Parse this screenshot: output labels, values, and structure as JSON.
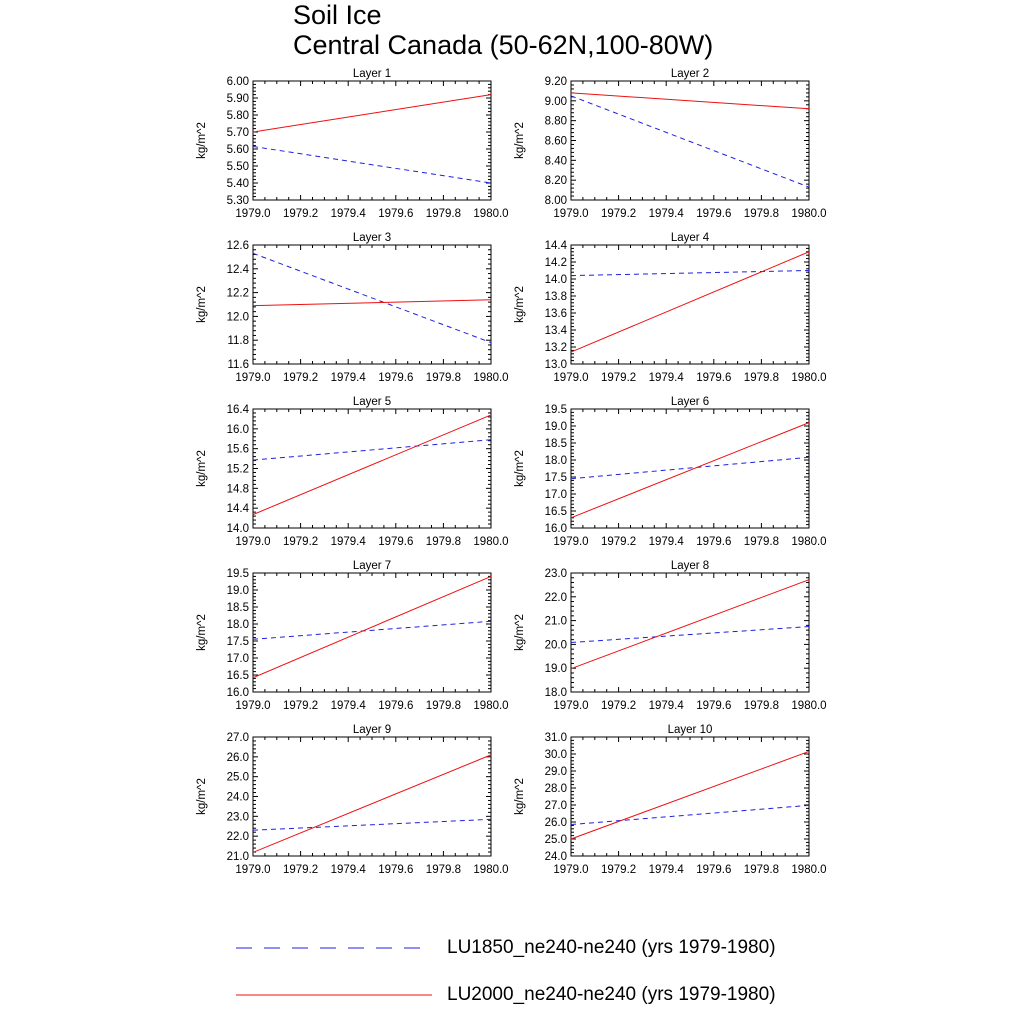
{
  "page": {
    "title_line1": "Soil Ice",
    "title_line2": "Central Canada (50-62N,100-80W)"
  },
  "colors": {
    "LU1850": "#2020e0",
    "LU2000": "#ee1010",
    "axis": "#000000"
  },
  "legend": [
    {
      "label": "LU1850_ne240-ne240 (yrs 1979-1980)",
      "style": "dashed",
      "color": "#2020e0"
    },
    {
      "label": "LU2000_ne240-ne240 (yrs 1979-1980)",
      "style": "solid",
      "color": "#ee1010"
    }
  ],
  "chart_data": [
    {
      "type": "line",
      "title": "Layer 1",
      "ylabel": "kg/m^2",
      "x": [
        1979.0,
        1980.0
      ],
      "xlim": [
        1979.0,
        1980.0
      ],
      "xticks": [
        "1979.0",
        "1979.2",
        "1979.4",
        "1979.6",
        "1979.8",
        "1980.0"
      ],
      "ylim": [
        5.3,
        6.0
      ],
      "yticks": [
        "5.30",
        "5.40",
        "5.50",
        "5.60",
        "5.70",
        "5.80",
        "5.90",
        "6.00"
      ],
      "series": [
        {
          "values": [
            5.615,
            5.4
          ],
          "style": "dashed",
          "color": "#2020e0"
        },
        {
          "values": [
            5.7,
            5.92
          ],
          "style": "solid",
          "color": "#ee1010"
        }
      ]
    },
    {
      "type": "line",
      "title": "Layer 2",
      "ylabel": "kg/m^2",
      "x": [
        1979.0,
        1980.0
      ],
      "xlim": [
        1979.0,
        1980.0
      ],
      "xticks": [
        "1979.0",
        "1979.2",
        "1979.4",
        "1979.6",
        "1979.8",
        "1980.0"
      ],
      "ylim": [
        8.0,
        9.2
      ],
      "yticks": [
        "8.00",
        "8.20",
        "8.40",
        "8.60",
        "8.80",
        "9.00",
        "9.20"
      ],
      "series": [
        {
          "values": [
            9.05,
            8.13
          ],
          "style": "dashed",
          "color": "#2020e0"
        },
        {
          "values": [
            9.08,
            8.92
          ],
          "style": "solid",
          "color": "#ee1010"
        }
      ]
    },
    {
      "type": "line",
      "title": "Layer 3",
      "ylabel": "kg/m^2",
      "x": [
        1979.0,
        1980.0
      ],
      "xlim": [
        1979.0,
        1980.0
      ],
      "xticks": [
        "1979.0",
        "1979.2",
        "1979.4",
        "1979.6",
        "1979.8",
        "1980.0"
      ],
      "ylim": [
        11.6,
        12.6
      ],
      "yticks": [
        "11.6",
        "11.8",
        "12.0",
        "12.2",
        "12.4",
        "12.6"
      ],
      "series": [
        {
          "values": [
            12.53,
            11.78
          ],
          "style": "dashed",
          "color": "#2020e0"
        },
        {
          "values": [
            12.09,
            12.14
          ],
          "style": "solid",
          "color": "#ee1010"
        }
      ]
    },
    {
      "type": "line",
      "title": "Layer 4",
      "ylabel": "kg/m^2",
      "x": [
        1979.0,
        1980.0
      ],
      "xlim": [
        1979.0,
        1980.0
      ],
      "xticks": [
        "1979.0",
        "1979.2",
        "1979.4",
        "1979.6",
        "1979.8",
        "1980.0"
      ],
      "ylim": [
        13.0,
        14.4
      ],
      "yticks": [
        "13.0",
        "13.2",
        "13.4",
        "13.6",
        "13.8",
        "14.0",
        "14.2",
        "14.4"
      ],
      "series": [
        {
          "values": [
            14.04,
            14.1
          ],
          "style": "dashed",
          "color": "#2020e0"
        },
        {
          "values": [
            13.14,
            14.32
          ],
          "style": "solid",
          "color": "#ee1010"
        }
      ]
    },
    {
      "type": "line",
      "title": "Layer 5",
      "ylabel": "kg/m^2",
      "x": [
        1979.0,
        1980.0
      ],
      "xlim": [
        1979.0,
        1980.0
      ],
      "xticks": [
        "1979.0",
        "1979.2",
        "1979.4",
        "1979.6",
        "1979.8",
        "1980.0"
      ],
      "ylim": [
        14.0,
        16.4
      ],
      "yticks": [
        "14.0",
        "14.4",
        "14.8",
        "15.2",
        "15.6",
        "16.0",
        "16.4"
      ],
      "series": [
        {
          "values": [
            15.37,
            15.78
          ],
          "style": "dashed",
          "color": "#2020e0"
        },
        {
          "values": [
            14.27,
            16.28
          ],
          "style": "solid",
          "color": "#ee1010"
        }
      ]
    },
    {
      "type": "line",
      "title": "Layer 6",
      "ylabel": "kg/m^2",
      "x": [
        1979.0,
        1980.0
      ],
      "xlim": [
        1979.0,
        1980.0
      ],
      "xticks": [
        "1979.0",
        "1979.2",
        "1979.4",
        "1979.6",
        "1979.8",
        "1980.0"
      ],
      "ylim": [
        16.0,
        19.5
      ],
      "yticks": [
        "16.0",
        "16.5",
        "17.0",
        "17.5",
        "18.0",
        "18.5",
        "19.0",
        "19.5"
      ],
      "series": [
        {
          "values": [
            17.45,
            18.08
          ],
          "style": "dashed",
          "color": "#2020e0"
        },
        {
          "values": [
            16.3,
            19.1
          ],
          "style": "solid",
          "color": "#ee1010"
        }
      ]
    },
    {
      "type": "line",
      "title": "Layer 7",
      "ylabel": "kg/m^2",
      "x": [
        1979.0,
        1980.0
      ],
      "xlim": [
        1979.0,
        1980.0
      ],
      "xticks": [
        "1979.0",
        "1979.2",
        "1979.4",
        "1979.6",
        "1979.8",
        "1980.0"
      ],
      "ylim": [
        16.0,
        19.5
      ],
      "yticks": [
        "16.0",
        "16.5",
        "17.0",
        "17.5",
        "18.0",
        "18.5",
        "19.0",
        "19.5"
      ],
      "series": [
        {
          "values": [
            17.55,
            18.08
          ],
          "style": "dashed",
          "color": "#2020e0"
        },
        {
          "values": [
            16.42,
            19.4
          ],
          "style": "solid",
          "color": "#ee1010"
        }
      ]
    },
    {
      "type": "line",
      "title": "Layer 8",
      "ylabel": "kg/m^2",
      "x": [
        1979.0,
        1980.0
      ],
      "xlim": [
        1979.0,
        1980.0
      ],
      "xticks": [
        "1979.0",
        "1979.2",
        "1979.4",
        "1979.6",
        "1979.8",
        "1980.0"
      ],
      "ylim": [
        18.0,
        23.0
      ],
      "yticks": [
        "18.0",
        "19.0",
        "20.0",
        "21.0",
        "22.0",
        "23.0"
      ],
      "series": [
        {
          "values": [
            20.08,
            20.75
          ],
          "style": "dashed",
          "color": "#2020e0"
        },
        {
          "values": [
            18.98,
            22.72
          ],
          "style": "solid",
          "color": "#ee1010"
        }
      ]
    },
    {
      "type": "line",
      "title": "Layer 9",
      "ylabel": "kg/m^2",
      "x": [
        1979.0,
        1980.0
      ],
      "xlim": [
        1979.0,
        1980.0
      ],
      "xticks": [
        "1979.0",
        "1979.2",
        "1979.4",
        "1979.6",
        "1979.8",
        "1980.0"
      ],
      "ylim": [
        21.0,
        27.0
      ],
      "yticks": [
        "21.0",
        "22.0",
        "23.0",
        "24.0",
        "25.0",
        "26.0",
        "27.0"
      ],
      "series": [
        {
          "values": [
            22.3,
            22.85
          ],
          "style": "dashed",
          "color": "#2020e0"
        },
        {
          "values": [
            21.18,
            26.1
          ],
          "style": "solid",
          "color": "#ee1010"
        }
      ]
    },
    {
      "type": "line",
      "title": "Layer 10",
      "ylabel": "kg/m^2",
      "x": [
        1979.0,
        1980.0
      ],
      "xlim": [
        1979.0,
        1980.0
      ],
      "xticks": [
        "1979.0",
        "1979.2",
        "1979.4",
        "1979.6",
        "1979.8",
        "1980.0"
      ],
      "ylim": [
        24.0,
        31.0
      ],
      "yticks": [
        "24.0",
        "25.0",
        "26.0",
        "27.0",
        "28.0",
        "29.0",
        "30.0",
        "31.0"
      ],
      "series": [
        {
          "values": [
            25.85,
            26.98
          ],
          "style": "dashed",
          "color": "#2020e0"
        },
        {
          "values": [
            25.0,
            30.15
          ],
          "style": "solid",
          "color": "#ee1010"
        }
      ]
    }
  ]
}
